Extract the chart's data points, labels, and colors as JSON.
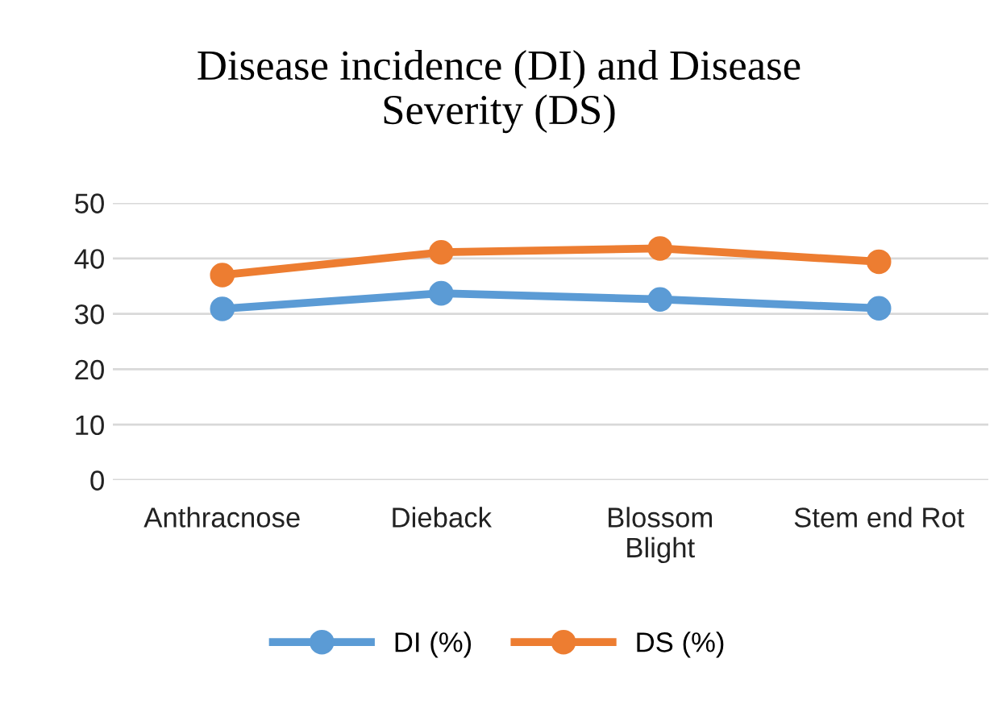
{
  "chart_data": {
    "type": "line",
    "title": "Disease incidence (DI) and Disease Severity (DS)",
    "categories": [
      "Anthracnose",
      "Dieback",
      "Blossom\nBlight",
      "Stem end Rot"
    ],
    "series": [
      {
        "name": "DI (%)",
        "color": "#5b9bd5",
        "values": [
          30.9,
          33.7,
          32.6,
          31.0
        ]
      },
      {
        "name": "DS (%)",
        "color": "#ed7d31",
        "values": [
          37.0,
          41.1,
          41.8,
          39.4
        ]
      }
    ],
    "ylim": [
      0,
      50
    ],
    "yticks": [
      0,
      10,
      20,
      30,
      40,
      50
    ],
    "grid": "y",
    "legend": "bottom",
    "marker": "circle",
    "line_style": "solid"
  }
}
